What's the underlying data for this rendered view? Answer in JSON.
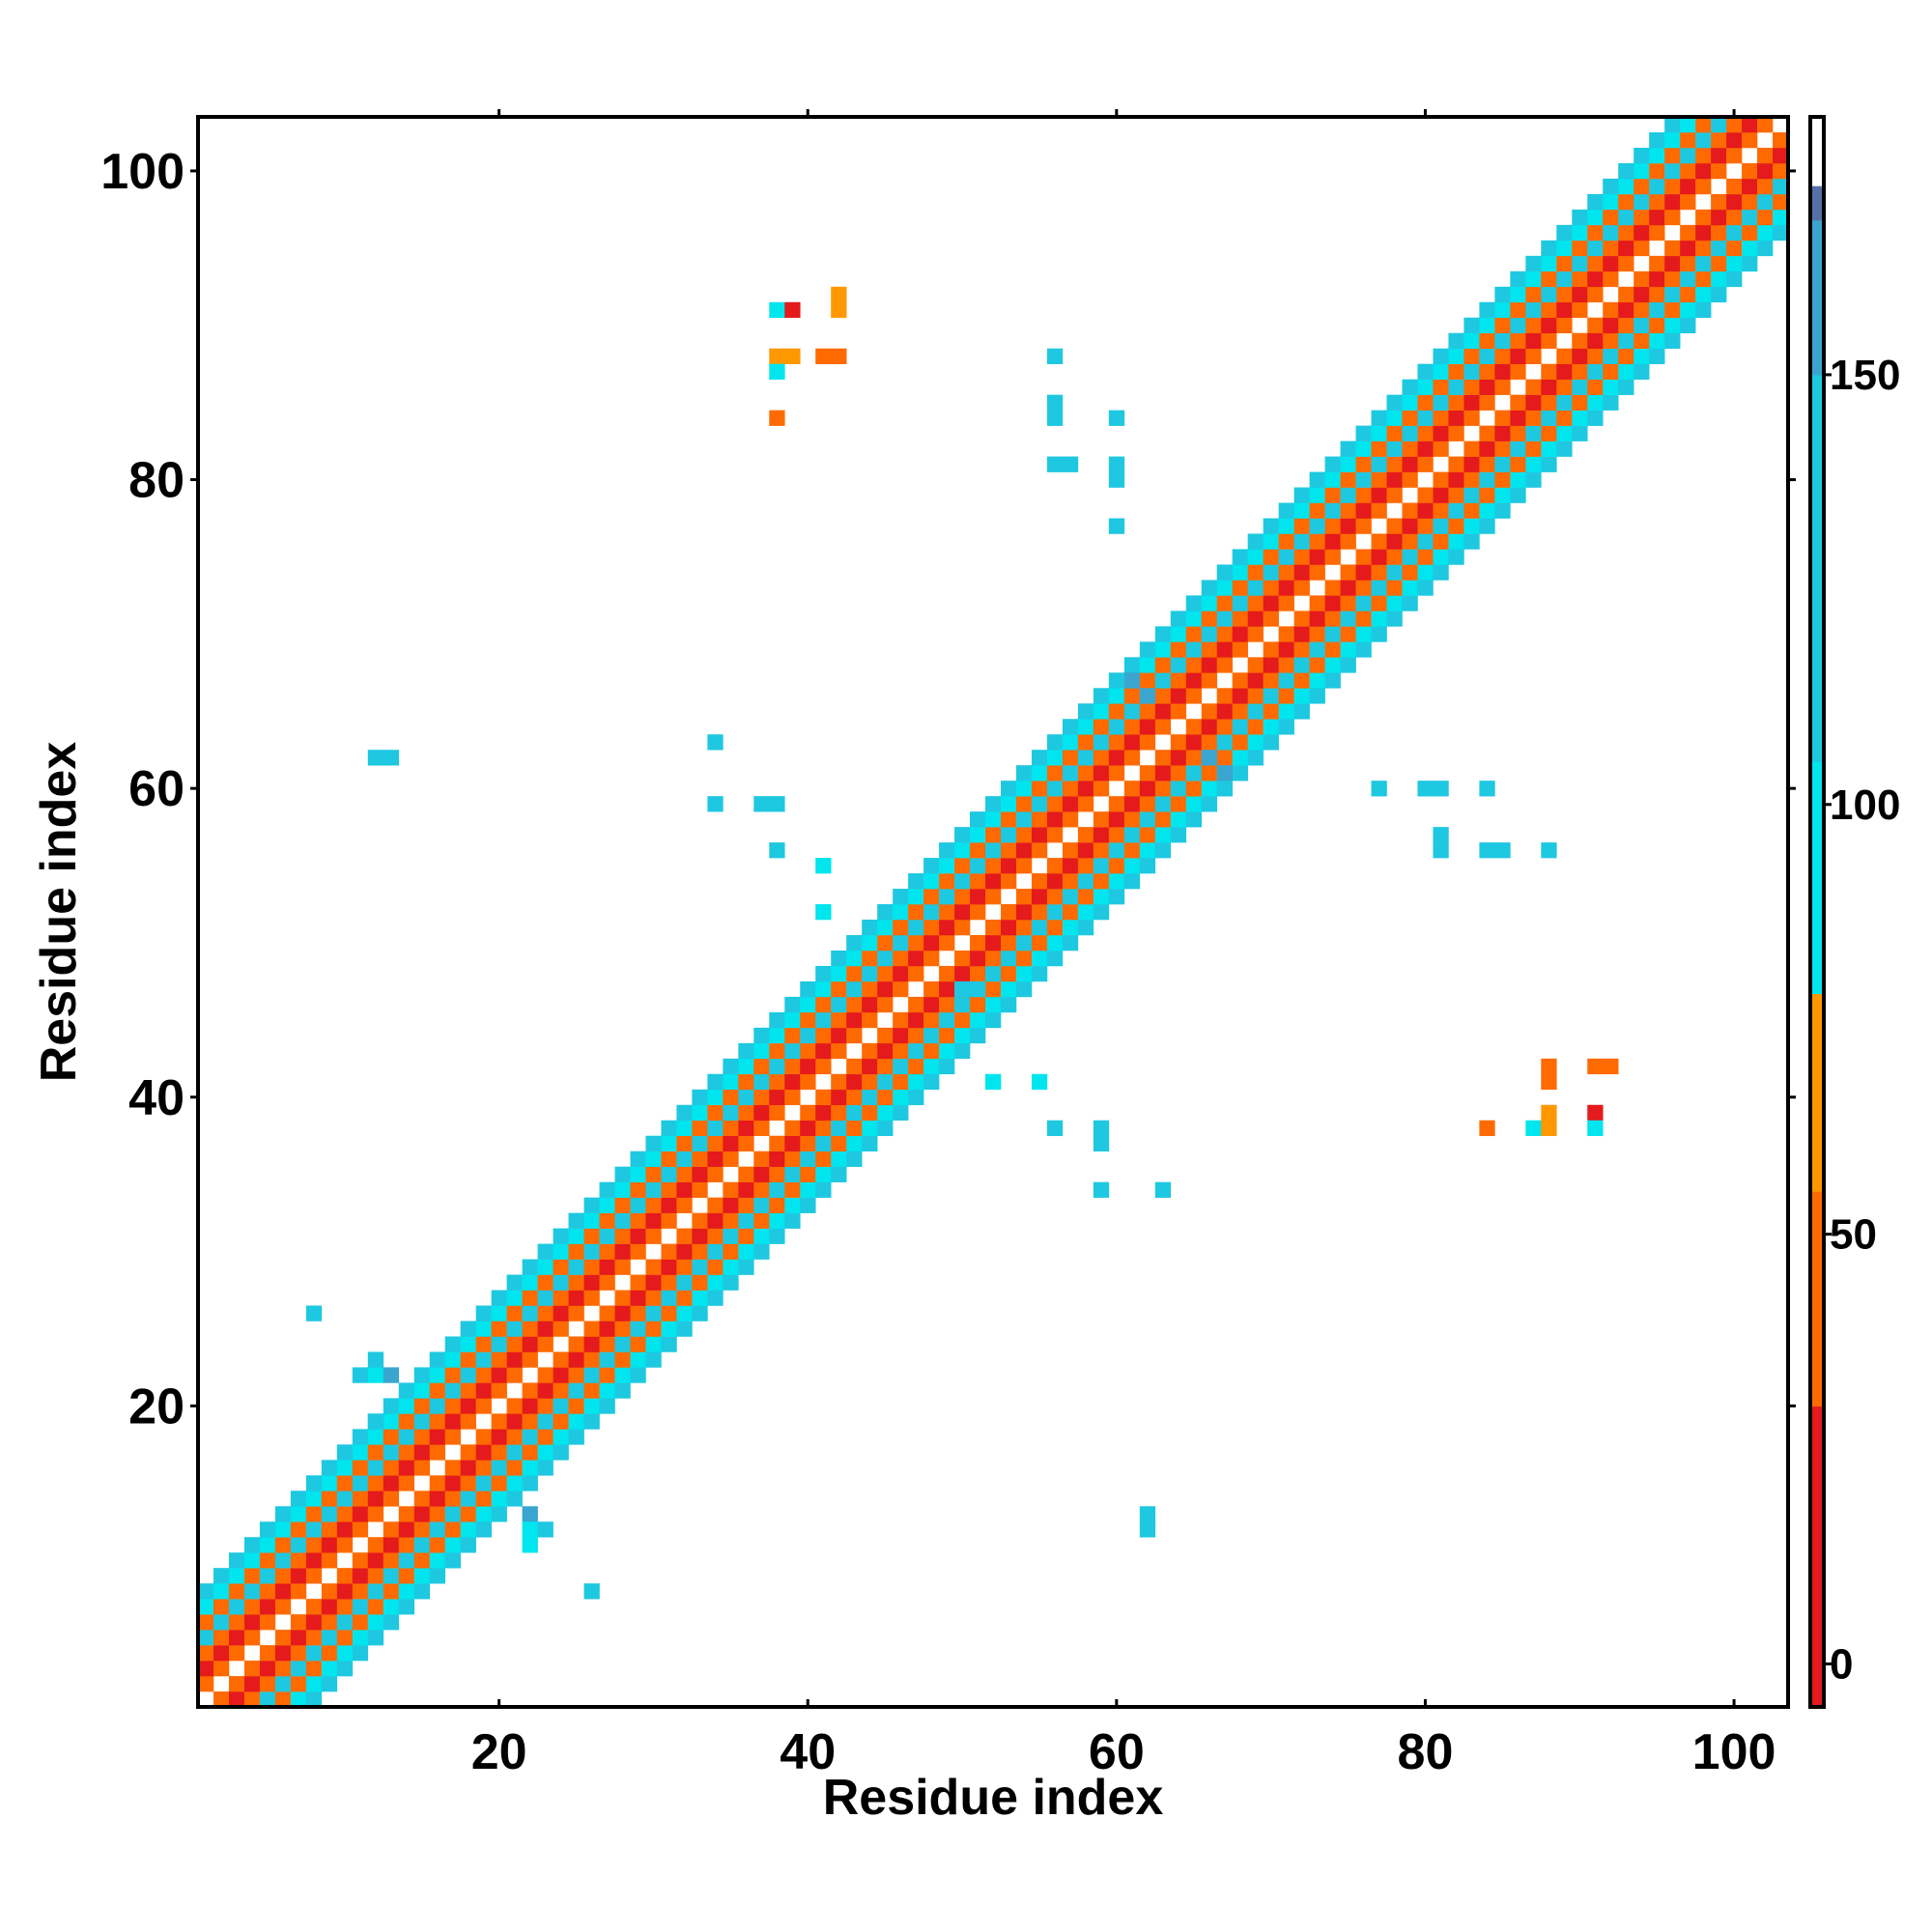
{
  "chart_data": {
    "type": "heatmap",
    "title": "",
    "xlabel": "Residue index",
    "ylabel": "Residue index",
    "xlim": [
      1,
      103
    ],
    "ylim": [
      1,
      103
    ],
    "x_ticks": [
      20,
      40,
      60,
      80,
      100
    ],
    "y_ticks": [
      20,
      40,
      60,
      80,
      100
    ],
    "colorbar": {
      "min": -5,
      "max": 180,
      "ticks": [
        0,
        50,
        100,
        150
      ],
      "bands": [
        {
          "from": -5,
          "to": 30,
          "color": "#e41a1c"
        },
        {
          "from": 30,
          "to": 55,
          "color": "#ff6a00"
        },
        {
          "from": 55,
          "to": 78,
          "color": "#ff9800"
        },
        {
          "from": 78,
          "to": 105,
          "color": "#00e5ee"
        },
        {
          "from": 105,
          "to": 150,
          "color": "#1ec8e0"
        },
        {
          "from": 150,
          "to": 168,
          "color": "#3aa6d0"
        },
        {
          "from": 168,
          "to": 172,
          "color": "#5570a8"
        },
        {
          "from": 172,
          "to": 180,
          "color": "#ffffff"
        }
      ]
    },
    "diagonal_pattern": {
      "from": 1,
      "to": 103,
      "by_offset": [
        {
          "offset": 1,
          "value": 45
        },
        {
          "offset": 2,
          "value": 20
        },
        {
          "offset": 3,
          "value": 42
        },
        {
          "offset": 4,
          "value": 120
        },
        {
          "offset": 5,
          "value": 38
        },
        {
          "offset": 6,
          "value": 95
        },
        {
          "offset": 7,
          "value": 115
        }
      ]
    },
    "off_diagonal_contacts": [
      {
        "x": 12,
        "y": 62,
        "value": 120
      },
      {
        "x": 13,
        "y": 62,
        "value": 120
      },
      {
        "x": 8,
        "y": 26,
        "value": 120
      },
      {
        "x": 11,
        "y": 22,
        "value": 120
      },
      {
        "x": 12,
        "y": 22,
        "value": 95
      },
      {
        "x": 13,
        "y": 22,
        "value": 160
      },
      {
        "x": 12,
        "y": 23,
        "value": 120
      },
      {
        "x": 12,
        "y": 19,
        "value": 120
      },
      {
        "x": 19,
        "y": 12,
        "value": 120
      },
      {
        "x": 22,
        "y": 13,
        "value": 160
      },
      {
        "x": 22,
        "y": 12,
        "value": 95
      },
      {
        "x": 23,
        "y": 12,
        "value": 120
      },
      {
        "x": 22,
        "y": 11,
        "value": 95
      },
      {
        "x": 26,
        "y": 8,
        "value": 120
      },
      {
        "x": 62,
        "y": 13,
        "value": 120
      },
      {
        "x": 62,
        "y": 12,
        "value": 120
      },
      {
        "x": 38,
        "y": 91,
        "value": 95
      },
      {
        "x": 39,
        "y": 91,
        "value": 20
      },
      {
        "x": 42,
        "y": 92,
        "value": 65
      },
      {
        "x": 42,
        "y": 91,
        "value": 65
      },
      {
        "x": 38,
        "y": 88,
        "value": 65
      },
      {
        "x": 39,
        "y": 88,
        "value": 65
      },
      {
        "x": 41,
        "y": 88,
        "value": 45
      },
      {
        "x": 42,
        "y": 88,
        "value": 45
      },
      {
        "x": 38,
        "y": 87,
        "value": 95
      },
      {
        "x": 38,
        "y": 84,
        "value": 45
      },
      {
        "x": 56,
        "y": 88,
        "value": 120
      },
      {
        "x": 56,
        "y": 85,
        "value": 120
      },
      {
        "x": 56,
        "y": 84,
        "value": 120
      },
      {
        "x": 60,
        "y": 84,
        "value": 120
      },
      {
        "x": 56,
        "y": 81,
        "value": 120
      },
      {
        "x": 57,
        "y": 81,
        "value": 120
      },
      {
        "x": 60,
        "y": 81,
        "value": 120
      },
      {
        "x": 60,
        "y": 80,
        "value": 120
      },
      {
        "x": 60,
        "y": 77,
        "value": 120
      },
      {
        "x": 34,
        "y": 63,
        "value": 120
      },
      {
        "x": 34,
        "y": 59,
        "value": 120
      },
      {
        "x": 37,
        "y": 59,
        "value": 120
      },
      {
        "x": 38,
        "y": 59,
        "value": 120
      },
      {
        "x": 38,
        "y": 56,
        "value": 120
      },
      {
        "x": 41,
        "y": 55,
        "value": 95
      },
      {
        "x": 41,
        "y": 52,
        "value": 95
      },
      {
        "x": 52,
        "y": 41,
        "value": 95
      },
      {
        "x": 55,
        "y": 41,
        "value": 95
      },
      {
        "x": 56,
        "y": 38,
        "value": 120
      },
      {
        "x": 59,
        "y": 38,
        "value": 120
      },
      {
        "x": 59,
        "y": 37,
        "value": 120
      },
      {
        "x": 59,
        "y": 34,
        "value": 120
      },
      {
        "x": 63,
        "y": 34,
        "value": 120
      },
      {
        "x": 77,
        "y": 60,
        "value": 120
      },
      {
        "x": 80,
        "y": 60,
        "value": 120
      },
      {
        "x": 81,
        "y": 60,
        "value": 120
      },
      {
        "x": 84,
        "y": 60,
        "value": 120
      },
      {
        "x": 81,
        "y": 57,
        "value": 120
      },
      {
        "x": 81,
        "y": 56,
        "value": 120
      },
      {
        "x": 84,
        "y": 56,
        "value": 120
      },
      {
        "x": 85,
        "y": 56,
        "value": 120
      },
      {
        "x": 88,
        "y": 56,
        "value": 120
      },
      {
        "x": 88,
        "y": 42,
        "value": 45
      },
      {
        "x": 88,
        "y": 41,
        "value": 45
      },
      {
        "x": 91,
        "y": 42,
        "value": 45
      },
      {
        "x": 92,
        "y": 42,
        "value": 45
      },
      {
        "x": 88,
        "y": 39,
        "value": 65
      },
      {
        "x": 91,
        "y": 39,
        "value": 20
      },
      {
        "x": 84,
        "y": 38,
        "value": 45
      },
      {
        "x": 87,
        "y": 38,
        "value": 95
      },
      {
        "x": 88,
        "y": 38,
        "value": 65
      },
      {
        "x": 91,
        "y": 38,
        "value": 95
      },
      {
        "x": 61,
        "y": 67,
        "value": 160
      },
      {
        "x": 62,
        "y": 66,
        "value": 160
      },
      {
        "x": 66,
        "y": 62,
        "value": 160
      },
      {
        "x": 67,
        "y": 61,
        "value": 160
      },
      {
        "x": 50,
        "y": 47,
        "value": 120
      },
      {
        "x": 51,
        "y": 47,
        "value": 120
      }
    ]
  }
}
